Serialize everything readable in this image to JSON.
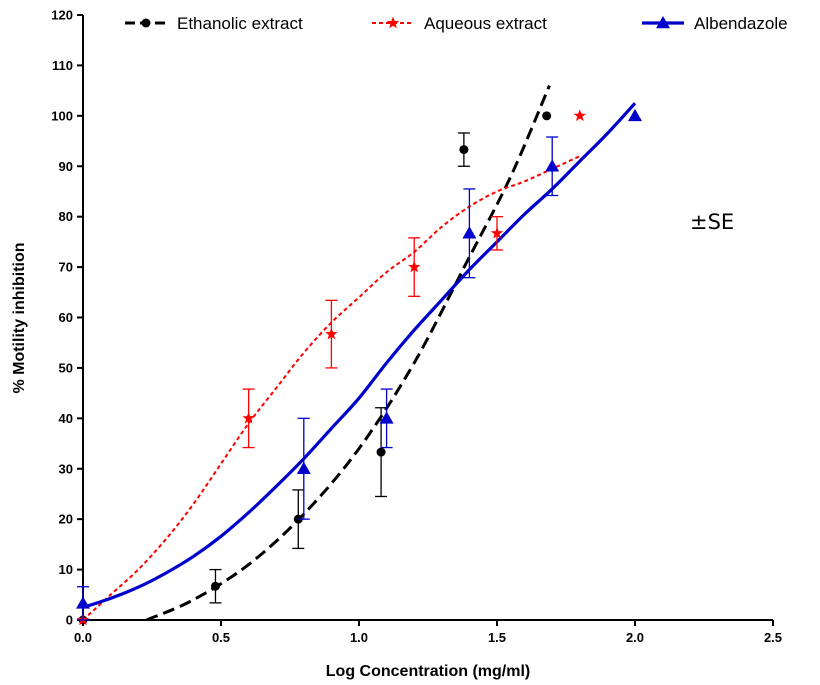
{
  "chart_data": {
    "type": "scatter",
    "title": "",
    "xlabel": "Log Concentration (mg/ml)",
    "ylabel": "% Motility inhibition",
    "xlim": [
      0,
      2.5
    ],
    "ylim": [
      0,
      120
    ],
    "x_ticks": [
      "0.0",
      "0.5",
      "1.0",
      "1.5",
      "2.0",
      "2.5"
    ],
    "y_ticks": [
      "0",
      "10",
      "20",
      "30",
      "40",
      "50",
      "60",
      "70",
      "80",
      "90",
      "100",
      "110",
      "120"
    ],
    "grid": false,
    "legend_position": "top",
    "annotation": "±SE",
    "series": [
      {
        "name": "Ethanolic extract",
        "color": "#000000",
        "marker": "circle",
        "line": "dashed",
        "points": [
          {
            "x": 0.0,
            "y": 0,
            "se": 0
          },
          {
            "x": 0.48,
            "y": 6.7,
            "se": 3.3
          },
          {
            "x": 0.78,
            "y": 20,
            "se": 5.8
          },
          {
            "x": 1.08,
            "y": 33.3,
            "se": 8.8
          },
          {
            "x": 1.38,
            "y": 93.3,
            "se": 3.3
          },
          {
            "x": 1.68,
            "y": 100,
            "se": 0
          }
        ],
        "fit": [
          [
            0.23,
            0
          ],
          [
            0.4,
            4
          ],
          [
            0.6,
            11
          ],
          [
            0.8,
            21
          ],
          [
            1.0,
            34
          ],
          [
            1.2,
            51
          ],
          [
            1.4,
            72
          ],
          [
            1.55,
            88
          ],
          [
            1.69,
            106
          ]
        ]
      },
      {
        "name": "Aqueous extract",
        "color": "#ff0000",
        "marker": "star",
        "line": "dotted",
        "points": [
          {
            "x": 0.0,
            "y": 0,
            "se": 0
          },
          {
            "x": 0.6,
            "y": 40,
            "se": 5.8
          },
          {
            "x": 0.9,
            "y": 56.7,
            "se": 6.7
          },
          {
            "x": 1.2,
            "y": 70,
            "se": 5.8
          },
          {
            "x": 1.5,
            "y": 76.7,
            "se": 3.3
          },
          {
            "x": 1.8,
            "y": 100,
            "se": 0
          }
        ],
        "fit": [
          [
            0,
            0
          ],
          [
            0.1,
            5
          ],
          [
            0.2,
            10
          ],
          [
            0.3,
            16
          ],
          [
            0.4,
            23
          ],
          [
            0.5,
            31
          ],
          [
            0.6,
            39
          ],
          [
            0.7,
            46
          ],
          [
            0.8,
            53
          ],
          [
            0.9,
            59
          ],
          [
            1.0,
            64
          ],
          [
            1.1,
            69
          ],
          [
            1.2,
            73
          ],
          [
            1.3,
            78
          ],
          [
            1.4,
            82
          ],
          [
            1.5,
            85
          ],
          [
            1.6,
            87
          ],
          [
            1.7,
            89.5
          ],
          [
            1.8,
            92
          ]
        ]
      },
      {
        "name": "Albendazole",
        "color": "#0000cc",
        "marker": "triangle",
        "line": "solid",
        "points": [
          {
            "x": 0.0,
            "y": 3.3,
            "se": 3.3
          },
          {
            "x": 0.8,
            "y": 30,
            "se": 10
          },
          {
            "x": 1.1,
            "y": 40,
            "se": 5.8
          },
          {
            "x": 1.4,
            "y": 76.7,
            "se": 8.8
          },
          {
            "x": 1.7,
            "y": 90,
            "se": 5.8
          },
          {
            "x": 2.0,
            "y": 100,
            "se": 0
          }
        ],
        "fit": [
          [
            0,
            2.5
          ],
          [
            0.1,
            4.3
          ],
          [
            0.2,
            6.5
          ],
          [
            0.3,
            9.3
          ],
          [
            0.4,
            12.6
          ],
          [
            0.5,
            16.6
          ],
          [
            0.6,
            21.3
          ],
          [
            0.7,
            26.5
          ],
          [
            0.8,
            32
          ],
          [
            0.9,
            38
          ],
          [
            1.0,
            44
          ],
          [
            1.1,
            51
          ],
          [
            1.2,
            57.5
          ],
          [
            1.3,
            63.5
          ],
          [
            1.4,
            69.5
          ],
          [
            1.5,
            75
          ],
          [
            1.6,
            80.5
          ],
          [
            1.7,
            85.5
          ],
          [
            1.8,
            91
          ],
          [
            1.9,
            96.5
          ],
          [
            2.0,
            102.5
          ]
        ]
      }
    ]
  }
}
